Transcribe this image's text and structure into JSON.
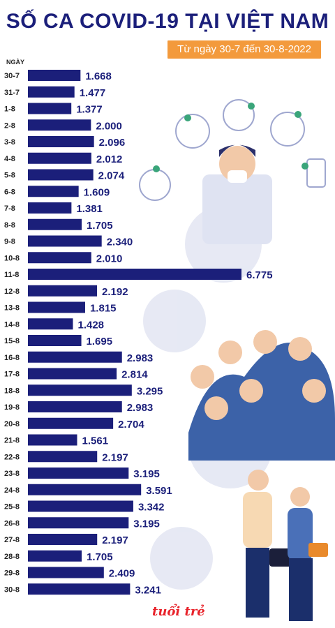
{
  "title": "SỐ CA COVID-19 TẠI VIỆT NAM",
  "subtitle": "Từ ngày 30-7 đến 30-8-2022",
  "logo_text": "tuổi trẻ",
  "colors": {
    "bar": "#1b1f7a",
    "accent": "#f39a3c",
    "text": "#1b1f7a",
    "illustration": "#c8cde6"
  },
  "chart_data": {
    "type": "bar",
    "orientation": "horizontal",
    "ylabel": "NGÀY",
    "xlim": [
      0,
      7000
    ],
    "grid": false,
    "categories": [
      "30-7",
      "31-7",
      "1-8",
      "2-8",
      "3-8",
      "4-8",
      "5-8",
      "6-8",
      "7-8",
      "8-8",
      "9-8",
      "10-8",
      "11-8",
      "12-8",
      "13-8",
      "14-8",
      "15-8",
      "16-8",
      "17-8",
      "18-8",
      "19-8",
      "20-8",
      "21-8",
      "22-8",
      "23-8",
      "24-8",
      "25-8",
      "26-8",
      "27-8",
      "28-8",
      "29-8",
      "30-8"
    ],
    "values": [
      1668,
      1477,
      1377,
      2000,
      2096,
      2012,
      2074,
      1609,
      1381,
      1705,
      2340,
      2010,
      6775,
      2192,
      1815,
      1428,
      1695,
      2983,
      2814,
      3295,
      2983,
      2704,
      1561,
      2197,
      3195,
      3591,
      3342,
      3195,
      2197,
      1705,
      2409,
      3241
    ],
    "value_labels": [
      "1.668",
      "1.477",
      "1.377",
      "2.000",
      "2.096",
      "2.012",
      "2.074",
      "1.609",
      "1.381",
      "1.705",
      "2.340",
      "2.010",
      "6.775",
      "2.192",
      "1.815",
      "1.428",
      "1.695",
      "2.983",
      "2.814",
      "3.295",
      "2.983",
      "2.704",
      "1.561",
      "2.197",
      "3.195",
      "3.591",
      "3.342",
      "3.195",
      "2.197",
      "1.705",
      "2.409",
      "3.241"
    ]
  }
}
